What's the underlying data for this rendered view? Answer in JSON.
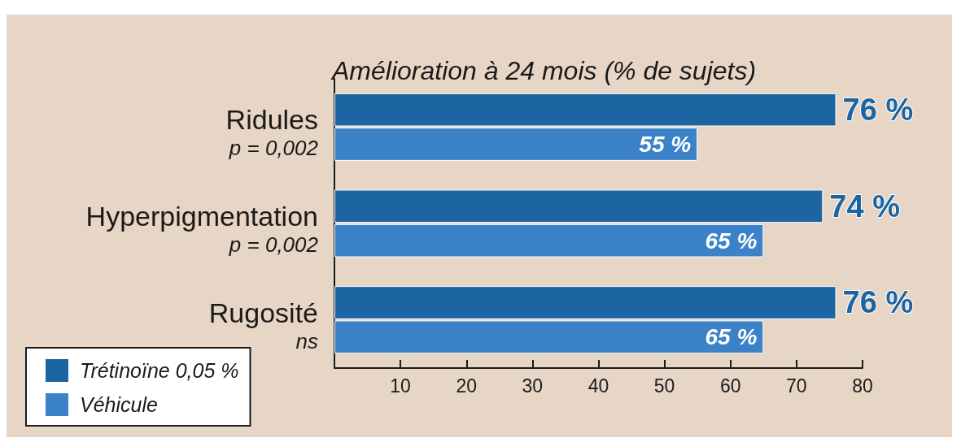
{
  "chart_data": {
    "type": "bar",
    "orientation": "horizontal",
    "title": "Amélioration à 24 mois (% de sujets)",
    "categories": [
      "Ridules",
      "Hyperpigmentation",
      "Rugosité"
    ],
    "series": [
      {
        "name": "Trétinoïne 0,05 %",
        "color": "#1c64a2",
        "values": [
          76,
          74,
          76
        ],
        "value_labels": [
          "76 %",
          "74 %",
          "76 %"
        ]
      },
      {
        "name": "Véhicule",
        "color": "#3b82c8",
        "values": [
          55,
          65,
          65
        ],
        "value_labels": [
          "55 %",
          "65 %",
          "65 %"
        ]
      }
    ],
    "xlim": [
      0,
      80
    ],
    "xticks": [
      10,
      20,
      30,
      40,
      50,
      60,
      70,
      80
    ],
    "grid": false,
    "legend": "bottom left",
    "annotations": [
      "p = 0,002",
      "p = 0,002",
      "ns"
    ]
  }
}
